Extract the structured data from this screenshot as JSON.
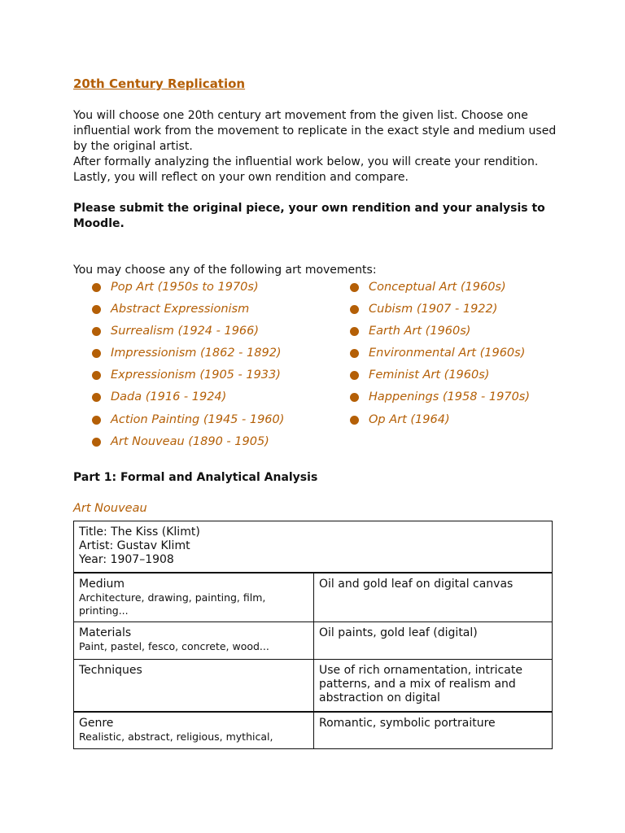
{
  "title": "20th Century Replication",
  "intro": [
    "You will choose one 20th century art movement from the given list. Choose one influential work from the movement to replicate in the exact style and medium used by the original artist.",
    "After formally analyzing the influential work below, you will create your rendition. Lastly, you will reflect on your own rendition and compare."
  ],
  "submit_note": "Please submit the original piece, your own rendition and your analysis to Moodle.",
  "list_intro": "You may choose any of the following art movements:",
  "accent_color": "#b45f06",
  "movements_left": [
    "Pop Art (1950s to 1970s)",
    "Abstract Expressionism",
    "Surrealism (1924 - 1966)",
    "Impressionism (1862 - 1892)",
    "Expressionism (1905 - 1933)",
    "Dada (1916 - 1924)",
    "Action Painting (1945 - 1960)",
    "Art Nouveau (1890 - 1905)"
  ],
  "movements_right": [
    "Conceptual Art (1960s)",
    "Cubism (1907 - 1922)",
    "Earth Art (1960s)",
    "Environmental Art (1960s)",
    "Feminist Art (1960s)",
    "Happenings (1958 - 1970s)",
    "Op Art (1964)"
  ],
  "part1_heading": "Part 1: Formal and Analytical Analysis",
  "selected_movement": "Art Nouveau",
  "table": {
    "header": [
      "Title: The Kiss (Klimt)",
      "Artist: Gustav Klimt",
      "Year: 1907–1908"
    ],
    "rows": [
      {
        "label": "Medium",
        "hint": "Architecture, drawing, painting, film, printing...",
        "value": "Oil and gold leaf on digital canvas"
      },
      {
        "label": "Materials",
        "hint": "Paint, pastel, fesco, concrete, wood...",
        "value": "Oil paints, gold leaf (digital)"
      },
      {
        "label": "Techniques",
        "hint": "",
        "value": "Use of rich ornamentation, intricate patterns, and a mix of realism and abstraction on digital"
      },
      {
        "label": "Genre",
        "hint": "Realistic, abstract, religious, mythical,",
        "value": "Romantic, symbolic portraiture"
      }
    ]
  }
}
